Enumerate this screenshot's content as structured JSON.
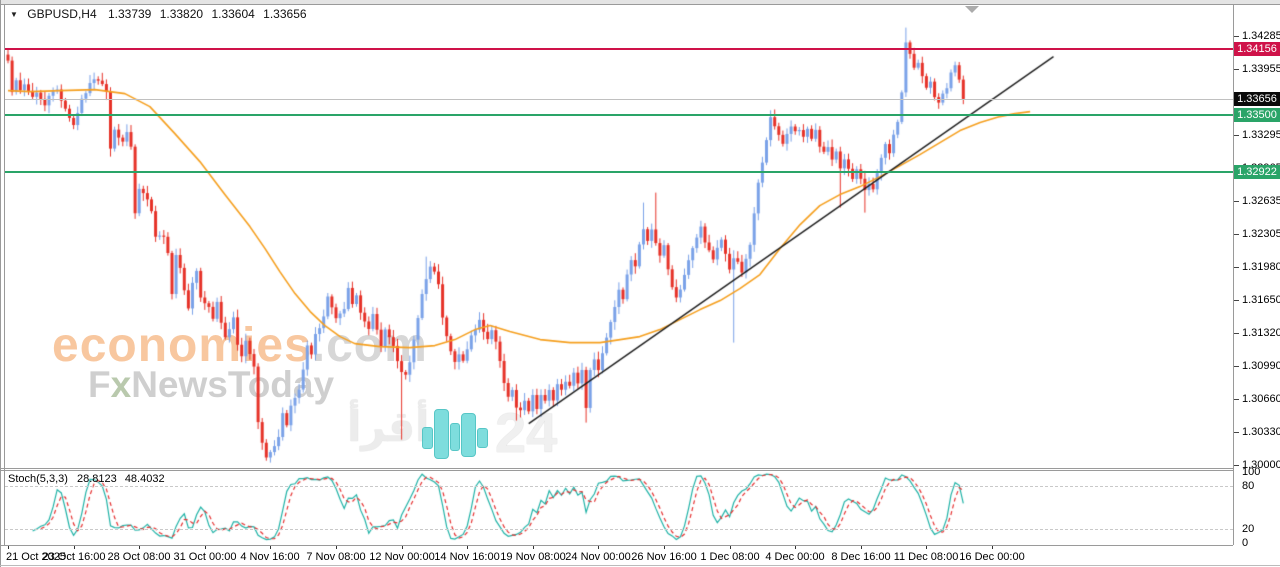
{
  "window": {
    "collapse_icon": "▼",
    "symbol_period": "GBPUSD,H4",
    "title_open": "1.33739",
    "title_high": "1.33820",
    "title_low": "1.33604",
    "title_close": "1.33656"
  },
  "watermarks": {
    "brand_orange": "economies",
    "brand_gray": ".com",
    "brand2_f": "F",
    "brand2_x": "x",
    "brand2_rest": "NewsToday",
    "arabic_text": "أقرأ",
    "number_text": "24",
    "orange_color": "#f8c79f",
    "gray_color": "#d7d7d7",
    "teal_color": "#78dcdc"
  },
  "chart_data": {
    "type": "candlestick",
    "symbol": "GBPUSD",
    "timeframe": "H4",
    "title": "GBPUSD,H4",
    "bar_count": 234,
    "up_color": "#7ba2e8",
    "down_color": "#e63228",
    "price_axis": {
      "side": "right",
      "tick_labels": [
        "1.34285",
        "1.33955",
        "1.33295",
        "1.32965",
        "1.32635",
        "1.32305",
        "1.31980",
        "1.31650",
        "1.31320",
        "1.30990",
        "1.30660",
        "1.30330",
        "1.30000"
      ],
      "badges": [
        {
          "value": "1.34156",
          "color": "#cf1249"
        },
        {
          "value": "1.33656",
          "color": "#0a0a0a"
        },
        {
          "value": "1.33500",
          "color": "#2aa468"
        },
        {
          "value": "1.32922",
          "color": "#2aa468"
        }
      ]
    },
    "time_axis": {
      "labels": [
        "21 Oct 2025",
        "23 Oct 16:00",
        "28 Oct 08:00",
        "31 Oct 00:00",
        "4 Nov 16:00",
        "7 Nov 08:00",
        "12 Nov 00:00",
        "14 Nov 16:00",
        "19 Nov 08:00",
        "24 Nov 00:00",
        "26 Nov 16:00",
        "1 Dec 08:00",
        "4 Dec 00:00",
        "8 Dec 16:00",
        "11 Dec 08:00",
        "16 Dec 00:00"
      ],
      "bars_per_label": 16
    },
    "levels": [
      {
        "price": 1.34156,
        "color": "#cf1249",
        "width": 2,
        "role": "resistance"
      },
      {
        "price": 1.33656,
        "color": "#c0c0c0",
        "width": 1,
        "role": "current-price"
      },
      {
        "price": 1.335,
        "color": "#2aa468",
        "width": 2,
        "role": "support"
      },
      {
        "price": 1.32922,
        "color": "#2aa468",
        "width": 2,
        "role": "support"
      }
    ],
    "trendline": {
      "from_bar": 127,
      "from_price": 1.3041,
      "to_bar": 255,
      "to_price": 1.3408,
      "color": "#1c1c1c"
    },
    "moving_average": {
      "color": "#f59f1e",
      "points": [
        [
          0,
          1.3374
        ],
        [
          5.4,
          1.3373
        ],
        [
          12.7,
          1.3374
        ],
        [
          21.2,
          1.3375
        ],
        [
          28.5,
          1.3371
        ],
        [
          34.6,
          1.3358
        ],
        [
          40.7,
          1.3331
        ],
        [
          46.8,
          1.3303
        ],
        [
          52.9,
          1.327
        ],
        [
          59,
          1.3238
        ],
        [
          62.7,
          1.3216
        ],
        [
          66.3,
          1.3193
        ],
        [
          70,
          1.3171
        ],
        [
          73.7,
          1.3153
        ],
        [
          77.3,
          1.3139
        ],
        [
          81,
          1.3128
        ],
        [
          84.6,
          1.3121
        ],
        [
          90.7,
          1.3118
        ],
        [
          98,
          1.3117
        ],
        [
          104.1,
          1.3119
        ],
        [
          109,
          1.3125
        ],
        [
          113.9,
          1.3135
        ],
        [
          117.6,
          1.3139
        ],
        [
          122.4,
          1.3133
        ],
        [
          129.8,
          1.3125
        ],
        [
          137.1,
          1.3122
        ],
        [
          144.4,
          1.3122
        ],
        [
          149.3,
          1.3125
        ],
        [
          154.1,
          1.3128
        ],
        [
          159,
          1.3135
        ],
        [
          163.9,
          1.3145
        ],
        [
          168.8,
          1.3155
        ],
        [
          173.7,
          1.3164
        ],
        [
          178.5,
          1.3176
        ],
        [
          183.4,
          1.319
        ],
        [
          188.3,
          1.3216
        ],
        [
          193.2,
          1.324
        ],
        [
          198,
          1.3259
        ],
        [
          202.9,
          1.327
        ],
        [
          207.8,
          1.3278
        ],
        [
          212.7,
          1.3288
        ],
        [
          217.6,
          1.3299
        ],
        [
          222.4,
          1.331
        ],
        [
          227.3,
          1.3322
        ],
        [
          232.2,
          1.3334
        ],
        [
          237.1,
          1.3342
        ],
        [
          241.9,
          1.3348
        ],
        [
          245.6,
          1.3351
        ],
        [
          249.3,
          1.3353
        ]
      ]
    },
    "candles_waypoints": [
      [
        0,
        1.3407
      ],
      [
        1,
        1.337
      ],
      [
        2,
        1.3387
      ],
      [
        3,
        1.3374
      ],
      [
        4,
        1.3381
      ],
      [
        6,
        1.3367
      ],
      [
        7,
        1.3374
      ],
      [
        9,
        1.3359
      ],
      [
        10,
        1.3366
      ],
      [
        12,
        1.3377
      ],
      [
        13,
        1.3361
      ],
      [
        15,
        1.3347
      ],
      [
        16,
        1.3337
      ],
      [
        17,
        1.3352
      ],
      [
        18,
        1.3365
      ],
      [
        20,
        1.338
      ],
      [
        21,
        1.3385
      ],
      [
        23,
        1.3381
      ],
      [
        24,
        1.3375
      ],
      [
        25,
        1.3317
      ],
      [
        26,
        1.3335
      ],
      [
        28,
        1.3325
      ],
      [
        29,
        1.3333
      ],
      [
        30,
        1.3315
      ],
      [
        31,
        1.325
      ],
      [
        32,
        1.3277
      ],
      [
        34,
        1.3267
      ],
      [
        35,
        1.3253
      ],
      [
        36,
        1.3225
      ],
      [
        38,
        1.3228
      ],
      [
        39,
        1.321
      ],
      [
        40,
        1.317
      ],
      [
        41,
        1.3207
      ],
      [
        42,
        1.3197
      ],
      [
        44,
        1.3155
      ],
      [
        45,
        1.318
      ],
      [
        46,
        1.3195
      ],
      [
        47,
        1.3167
      ],
      [
        49,
        1.316
      ],
      [
        50,
        1.3147
      ],
      [
        51,
        1.3165
      ],
      [
        52,
        1.314
      ],
      [
        53,
        1.3127
      ],
      [
        55,
        1.3145
      ],
      [
        56,
        1.312
      ],
      [
        57,
        1.311
      ],
      [
        58,
        1.3125
      ],
      [
        60,
        1.31
      ],
      [
        61,
        1.3045
      ],
      [
        62,
        1.302
      ],
      [
        63,
        1.301
      ],
      [
        64,
        1.3015
      ],
      [
        66,
        1.3027
      ],
      [
        67,
        1.3053
      ],
      [
        68,
        1.304
      ],
      [
        69,
        1.306
      ],
      [
        71,
        1.3075
      ],
      [
        72,
        1.3097
      ],
      [
        73,
        1.3122
      ],
      [
        74,
        1.3112
      ],
      [
        75,
        1.313
      ],
      [
        77,
        1.3147
      ],
      [
        78,
        1.317
      ],
      [
        79,
        1.316
      ],
      [
        80,
        1.3145
      ],
      [
        82,
        1.3158
      ],
      [
        83,
        1.3178
      ],
      [
        84,
        1.3163
      ],
      [
        85,
        1.317
      ],
      [
        86,
        1.3152
      ],
      [
        88,
        1.3136
      ],
      [
        89,
        1.3148
      ],
      [
        90,
        1.3133
      ],
      [
        91,
        1.312
      ],
      [
        92,
        1.3135
      ],
      [
        94,
        1.3117
      ],
      [
        95,
        1.3102
      ],
      [
        96,
        1.309
      ],
      [
        97,
        1.3092
      ],
      [
        98,
        1.3105
      ],
      [
        99,
        1.3125
      ],
      [
        100,
        1.3148
      ],
      [
        101,
        1.3168
      ],
      [
        102,
        1.3188
      ],
      [
        103,
        1.32
      ],
      [
        104,
        1.3193
      ],
      [
        105,
        1.3178
      ],
      [
        106,
        1.3148
      ],
      [
        107,
        1.3128
      ],
      [
        108,
        1.3112
      ],
      [
        109,
        1.31
      ],
      [
        110,
        1.3112
      ],
      [
        111,
        1.3103
      ],
      [
        112,
        1.3118
      ],
      [
        113,
        1.3132
      ],
      [
        114,
        1.3135
      ],
      [
        115,
        1.3145
      ],
      [
        116,
        1.3133
      ],
      [
        117,
        1.3123
      ],
      [
        118,
        1.3135
      ],
      [
        119,
        1.312
      ],
      [
        120,
        1.3105
      ],
      [
        121,
        1.308
      ],
      [
        122,
        1.3065
      ],
      [
        123,
        1.3077
      ],
      [
        124,
        1.306
      ],
      [
        125,
        1.3053
      ],
      [
        126,
        1.3065
      ],
      [
        127,
        1.3055
      ],
      [
        128,
        1.3067
      ],
      [
        129,
        1.3057
      ],
      [
        130,
        1.307
      ],
      [
        131,
        1.3062
      ],
      [
        132,
        1.3073
      ],
      [
        133,
        1.3067
      ],
      [
        134,
        1.308
      ],
      [
        135,
        1.3073
      ],
      [
        136,
        1.3085
      ],
      [
        137,
        1.3077
      ],
      [
        138,
        1.309
      ],
      [
        139,
        1.3083
      ],
      [
        140,
        1.3095
      ],
      [
        141,
        1.3055
      ],
      [
        142,
        1.3093
      ],
      [
        143,
        1.3103
      ],
      [
        144,
        1.3097
      ],
      [
        145,
        1.311
      ],
      [
        146,
        1.3125
      ],
      [
        147,
        1.314
      ],
      [
        148,
        1.3157
      ],
      [
        149,
        1.3175
      ],
      [
        150,
        1.3163
      ],
      [
        151,
        1.3193
      ],
      [
        152,
        1.3207
      ],
      [
        153,
        1.3197
      ],
      [
        154,
        1.322
      ],
      [
        155,
        1.3233
      ],
      [
        156,
        1.3221
      ],
      [
        157,
        1.3235
      ],
      [
        158,
        1.3223
      ],
      [
        159,
        1.321
      ],
      [
        160,
        1.3217
      ],
      [
        161,
        1.3195
      ],
      [
        162,
        1.318
      ],
      [
        163,
        1.3167
      ],
      [
        164,
        1.3177
      ],
      [
        165,
        1.319
      ],
      [
        166,
        1.3203
      ],
      [
        167,
        1.3215
      ],
      [
        168,
        1.3227
      ],
      [
        169,
        1.3237
      ],
      [
        170,
        1.3225
      ],
      [
        171,
        1.3213
      ],
      [
        172,
        1.3203
      ],
      [
        173,
        1.3215
      ],
      [
        174,
        1.3225
      ],
      [
        175,
        1.321
      ],
      [
        176,
        1.3197
      ],
      [
        177,
        1.3207
      ],
      [
        178,
        1.32
      ],
      [
        179,
        1.3193
      ],
      [
        180,
        1.3203
      ],
      [
        181,
        1.322
      ],
      [
        182,
        1.325
      ],
      [
        183,
        1.328
      ],
      [
        184,
        1.3305
      ],
      [
        185,
        1.3327
      ],
      [
        186,
        1.3345
      ],
      [
        187,
        1.3337
      ],
      [
        188,
        1.333
      ],
      [
        189,
        1.3323
      ],
      [
        190,
        1.333
      ],
      [
        191,
        1.334
      ],
      [
        192,
        1.3333
      ],
      [
        193,
        1.3337
      ],
      [
        194,
        1.3325
      ],
      [
        195,
        1.3335
      ],
      [
        196,
        1.3327
      ],
      [
        197,
        1.3333
      ],
      [
        198,
        1.332
      ],
      [
        199,
        1.3313
      ],
      [
        200,
        1.3317
      ],
      [
        201,
        1.3307
      ],
      [
        202,
        1.3313
      ],
      [
        203,
        1.3297
      ],
      [
        204,
        1.3303
      ],
      [
        205,
        1.3295
      ],
      [
        206,
        1.3287
      ],
      [
        207,
        1.3293
      ],
      [
        208,
        1.3283
      ],
      [
        209,
        1.3275
      ],
      [
        210,
        1.3282
      ],
      [
        211,
        1.3277
      ],
      [
        212,
        1.329
      ],
      [
        213,
        1.3305
      ],
      [
        214,
        1.332
      ],
      [
        215,
        1.3313
      ],
      [
        216,
        1.3327
      ],
      [
        217,
        1.3345
      ],
      [
        218,
        1.337
      ],
      [
        219,
        1.3423
      ],
      [
        220,
        1.341
      ],
      [
        221,
        1.3397
      ],
      [
        222,
        1.3403
      ],
      [
        223,
        1.3387
      ],
      [
        224,
        1.3377
      ],
      [
        225,
        1.3383
      ],
      [
        226,
        1.337
      ],
      [
        227,
        1.3362
      ],
      [
        228,
        1.3369
      ],
      [
        229,
        1.3377
      ],
      [
        230,
        1.339
      ],
      [
        231,
        1.3399
      ],
      [
        232,
        1.3385
      ],
      [
        233,
        1.33656
      ]
    ],
    "wick_lows": [
      [
        25,
        1.3308
      ],
      [
        61,
        1.3036
      ],
      [
        63,
        1.3004
      ],
      [
        96,
        1.3025
      ],
      [
        124,
        1.3044
      ],
      [
        141,
        1.3042
      ],
      [
        177,
        1.3122
      ],
      [
        203,
        1.3257
      ],
      [
        209,
        1.3252
      ]
    ],
    "wick_highs": [
      [
        21,
        1.3392
      ],
      [
        102,
        1.3208
      ],
      [
        155,
        1.3262
      ],
      [
        158,
        1.3272
      ],
      [
        219,
        1.3437
      ],
      [
        231,
        1.3403
      ]
    ],
    "stochastic": {
      "label": "Stoch(5,3,3)",
      "k_period": 5,
      "slowing": 3,
      "d_period": 3,
      "main_value": "28.8123",
      "signal_value": "48.4032",
      "main_color": "#1fb2a6",
      "signal_color": "#e53030",
      "upper_level": 80,
      "lower_level": 20,
      "axis_ticks": [
        "100",
        "80",
        "20",
        "0"
      ]
    }
  }
}
